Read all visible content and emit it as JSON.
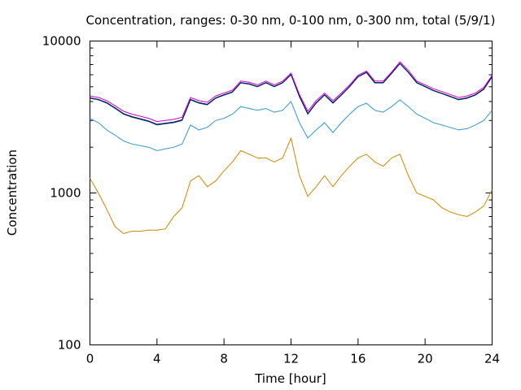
{
  "chart_data": {
    "type": "line",
    "title": "Concentration, ranges: 0-30 nm, 0-100 nm, 0-300 nm, total (5/9/1)",
    "xlabel": "Time [hour]",
    "ylabel": "Concentration",
    "xlim": [
      0,
      24
    ],
    "ylim": [
      100,
      10000
    ],
    "yscale": "log",
    "x_ticks": [
      0,
      4,
      8,
      12,
      16,
      20,
      24
    ],
    "x_tick_labels": [
      "0",
      "4",
      "8",
      "12",
      "16",
      "20",
      "24"
    ],
    "y_ticks": [
      100,
      1000,
      10000
    ],
    "y_tick_labels": [
      "100",
      "1000",
      "10000"
    ],
    "grid": false,
    "legend": "none",
    "x": [
      0,
      0.5,
      1,
      1.5,
      2,
      2.5,
      3,
      3.5,
      4,
      4.5,
      5,
      5.5,
      6,
      6.5,
      7,
      7.5,
      8,
      8.5,
      9,
      9.5,
      10,
      10.5,
      11,
      11.5,
      12,
      12.5,
      13,
      13.5,
      14,
      14.5,
      15,
      15.5,
      16,
      16.5,
      17,
      17.5,
      18,
      18.5,
      19,
      19.5,
      20,
      20.5,
      21,
      21.5,
      22,
      22.5,
      23,
      23.5,
      24
    ],
    "series": [
      {
        "color": "#cc8800",
        "values": [
          1250,
          1000,
          780,
          600,
          540,
          560,
          560,
          570,
          570,
          580,
          700,
          800,
          1200,
          1300,
          1100,
          1200,
          1400,
          1600,
          1900,
          1800,
          1700,
          1700,
          1600,
          1700,
          2300,
          1300,
          950,
          1100,
          1300,
          1100,
          1300,
          1500,
          1700,
          1800,
          1600,
          1500,
          1700,
          1800,
          1300,
          1000,
          950,
          900,
          800,
          750,
          720,
          700,
          750,
          820,
          1050
        ]
      },
      {
        "color": "#3399cc",
        "values": [
          3100,
          2900,
          2600,
          2400,
          2200,
          2100,
          2050,
          2000,
          1900,
          1950,
          2000,
          2100,
          2800,
          2600,
          2700,
          3000,
          3100,
          3300,
          3700,
          3600,
          3500,
          3600,
          3400,
          3500,
          4000,
          2900,
          2300,
          2600,
          2900,
          2500,
          2900,
          3300,
          3700,
          3900,
          3500,
          3400,
          3700,
          4100,
          3700,
          3300,
          3100,
          2900,
          2800,
          2700,
          2600,
          2650,
          2800,
          3000,
          3500
        ]
      },
      {
        "color": "#006666",
        "values": [
          4200,
          4100,
          3900,
          3600,
          3300,
          3150,
          3050,
          2950,
          2800,
          2850,
          2900,
          3000,
          4100,
          3900,
          3800,
          4200,
          4400,
          4600,
          5300,
          5200,
          5000,
          5300,
          5000,
          5300,
          6000,
          4300,
          3300,
          3900,
          4400,
          3900,
          4400,
          5000,
          5800,
          6200,
          5300,
          5300,
          6100,
          7100,
          6200,
          5300,
          5000,
          4700,
          4500,
          4300,
          4100,
          4200,
          4400,
          4800,
          5800
        ]
      },
      {
        "color": "#000066",
        "values": [
          4230,
          4130,
          3930,
          3630,
          3330,
          3180,
          3080,
          2980,
          2830,
          2880,
          2930,
          3030,
          4130,
          3930,
          3830,
          4230,
          4430,
          4630,
          5330,
          5230,
          5030,
          5330,
          5030,
          5330,
          6030,
          4330,
          3330,
          3930,
          4430,
          3930,
          4430,
          5030,
          5830,
          6230,
          5330,
          5330,
          6130,
          7130,
          6230,
          5330,
          5030,
          4730,
          4530,
          4330,
          4130,
          4230,
          4430,
          4830,
          5830
        ]
      },
      {
        "color": "#cc00cc",
        "values": [
          4350,
          4250,
          4050,
          3750,
          3450,
          3300,
          3200,
          3100,
          2950,
          3000,
          3050,
          3150,
          4250,
          4050,
          3950,
          4350,
          4550,
          4750,
          5450,
          5350,
          5150,
          5450,
          5150,
          5450,
          6150,
          4450,
          3450,
          4050,
          4550,
          4050,
          4550,
          5150,
          5950,
          6350,
          5450,
          5450,
          6250,
          7300,
          6400,
          5450,
          5150,
          4850,
          4650,
          4450,
          4250,
          4350,
          4550,
          4950,
          5950
        ]
      }
    ]
  }
}
